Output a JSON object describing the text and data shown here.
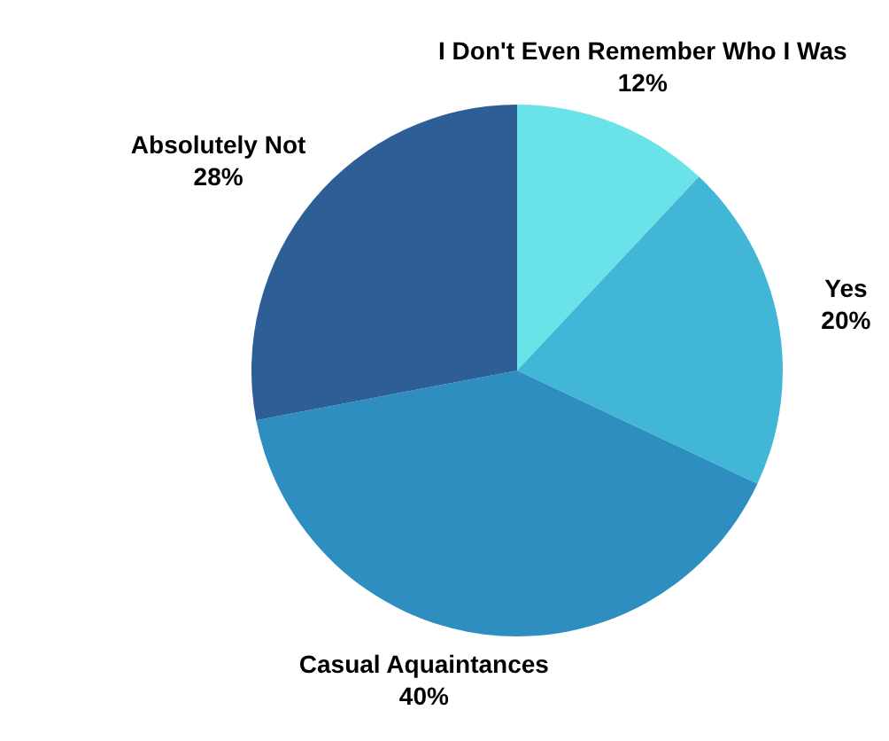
{
  "chart_data": {
    "type": "pie",
    "categories": [
      "I Don't Even Remember Who I Was",
      "Yes",
      "Casual Aquaintances",
      "Absolutely Not"
    ],
    "values": [
      12,
      20,
      40,
      28
    ],
    "colors": [
      "#6ae3e8",
      "#42b6d6",
      "#2e8ebf",
      "#2e5e96"
    ],
    "value_labels": [
      "12%",
      "20%",
      "40%",
      "28%"
    ]
  }
}
